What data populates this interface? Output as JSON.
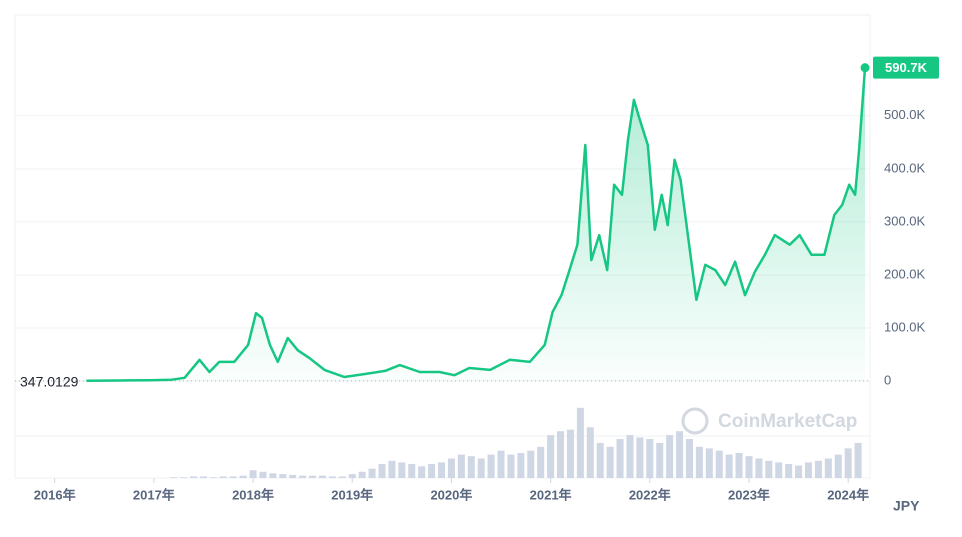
{
  "chart_data": {
    "type": "area",
    "currency": "JPY",
    "watermark": "CoinMarketCap",
    "color": "#16c784",
    "grid": true,
    "xlim": [
      2015.6,
      2024.22
    ],
    "xticks": [
      {
        "value": 2016,
        "label": "2016年"
      },
      {
        "value": 2017,
        "label": "2017年"
      },
      {
        "value": 2018,
        "label": "2018年"
      },
      {
        "value": 2019,
        "label": "2019年"
      },
      {
        "value": 2020,
        "label": "2020年"
      },
      {
        "value": 2021,
        "label": "2021年"
      },
      {
        "value": 2022,
        "label": "2022年"
      },
      {
        "value": 2023,
        "label": "2023年"
      },
      {
        "value": 2024,
        "label": "2024年"
      }
    ],
    "ylim": [
      0,
      690000
    ],
    "yticks": [
      0,
      {
        "value": 100000,
        "label": "100.0K"
      },
      {
        "value": 200000,
        "label": "200.0K"
      },
      {
        "value": 300000,
        "label": "300.0K"
      },
      {
        "value": 400000,
        "label": "400.0K"
      },
      {
        "value": 500000,
        "label": "500.0K"
      }
    ],
    "x": [
      2016.32,
      2016.66,
      2016.96,
      2017.18,
      2017.31,
      2017.46,
      2017.56,
      2017.66,
      2017.81,
      2017.95,
      2018.03,
      2018.09,
      2018.17,
      2018.25,
      2018.35,
      2018.45,
      2018.57,
      2018.72,
      2018.92,
      2019.12,
      2019.33,
      2019.48,
      2019.68,
      2019.88,
      2020.03,
      2020.18,
      2020.39,
      2020.59,
      2020.79,
      2020.94,
      2021.02,
      2021.11,
      2021.19,
      2021.27,
      2021.35,
      2021.41,
      2021.49,
      2021.57,
      2021.64,
      2021.72,
      2021.78,
      2021.84,
      2021.9,
      2021.98,
      2022.05,
      2022.12,
      2022.18,
      2022.25,
      2022.31,
      2022.39,
      2022.47,
      2022.56,
      2022.66,
      2022.76,
      2022.86,
      2022.96,
      2023.06,
      2023.16,
      2023.26,
      2023.41,
      2023.51,
      2023.63,
      2023.76,
      2023.86,
      2023.94,
      2024.01,
      2024.07,
      2024.11,
      2024.17
    ],
    "values": [
      347.0129,
      1000,
      1500,
      2500,
      6000,
      40000,
      17000,
      36000,
      36000,
      68000,
      128000,
      119000,
      68000,
      36000,
      81000,
      58000,
      43000,
      21000,
      7500,
      13000,
      19000,
      30000,
      17000,
      17000,
      11000,
      24500,
      21000,
      40000,
      36000,
      68000,
      130000,
      162000,
      209000,
      257000,
      445000,
      228000,
      275000,
      209000,
      370000,
      351000,
      455000,
      530000,
      492000,
      445000,
      285000,
      351000,
      294000,
      417000,
      379000,
      266000,
      153000,
      219000,
      209000,
      181000,
      225000,
      162000,
      206000,
      238000,
      275000,
      257000,
      275000,
      238000,
      238000,
      313000,
      332000,
      370000,
      351000,
      436000,
      590700
    ],
    "value_labels": [
      null,
      null,
      null,
      null,
      null,
      null,
      null,
      null,
      null,
      null,
      null,
      null,
      null,
      null,
      null,
      null,
      null,
      null,
      null,
      null,
      null,
      null,
      null,
      null,
      null,
      null,
      null,
      null,
      null,
      null,
      null,
      null,
      null,
      null,
      null,
      null,
      null,
      null,
      null,
      null,
      null,
      null,
      null,
      null,
      null,
      null,
      null,
      null,
      null,
      null,
      null,
      null,
      null,
      null,
      null,
      null,
      null,
      null,
      null,
      null,
      null,
      null,
      null,
      null,
      null,
      null,
      null,
      null,
      "590.7K"
    ],
    "volume": {
      "color": "#cfd6e4",
      "ylim": [
        0,
        100
      ],
      "x": [
        2016.3,
        2016.4,
        2016.5,
        2016.6,
        2016.7,
        2016.8,
        2016.9,
        2017.0,
        2017.1,
        2017.2,
        2017.3,
        2017.4,
        2017.5,
        2017.6,
        2017.7,
        2017.8,
        2017.9,
        2018.0,
        2018.1,
        2018.2,
        2018.3,
        2018.4,
        2018.5,
        2018.6,
        2018.7,
        2018.8,
        2018.9,
        2019.0,
        2019.1,
        2019.2,
        2019.3,
        2019.4,
        2019.5,
        2019.6,
        2019.7,
        2019.8,
        2019.9,
        2020.0,
        2020.1,
        2020.2,
        2020.3,
        2020.4,
        2020.5,
        2020.6,
        2020.7,
        2020.8,
        2020.9,
        2021.0,
        2021.1,
        2021.2,
        2021.3,
        2021.4,
        2021.5,
        2021.6,
        2021.7,
        2021.8,
        2021.9,
        2022.0,
        2022.1,
        2022.2,
        2022.3,
        2022.4,
        2022.5,
        2022.6,
        2022.7,
        2022.8,
        2022.9,
        2023.0,
        2023.1,
        2023.2,
        2023.3,
        2023.4,
        2023.5,
        2023.6,
        2023.7,
        2023.8,
        2023.9,
        2024.0,
        2024.1
      ],
      "values": [
        0,
        0,
        0,
        0,
        0,
        0,
        0,
        0,
        0,
        1,
        1,
        2,
        2,
        1,
        2,
        2,
        3,
        10,
        8,
        6,
        5,
        4,
        3,
        3,
        3,
        2,
        2,
        5,
        8,
        12,
        18,
        22,
        20,
        18,
        15,
        18,
        20,
        25,
        30,
        28,
        25,
        30,
        35,
        30,
        32,
        35,
        40,
        55,
        60,
        62,
        90,
        65,
        45,
        40,
        50,
        55,
        52,
        50,
        45,
        55,
        60,
        50,
        40,
        38,
        35,
        30,
        32,
        28,
        25,
        22,
        20,
        18,
        16,
        20,
        22,
        25,
        30,
        38,
        45
      ]
    }
  }
}
